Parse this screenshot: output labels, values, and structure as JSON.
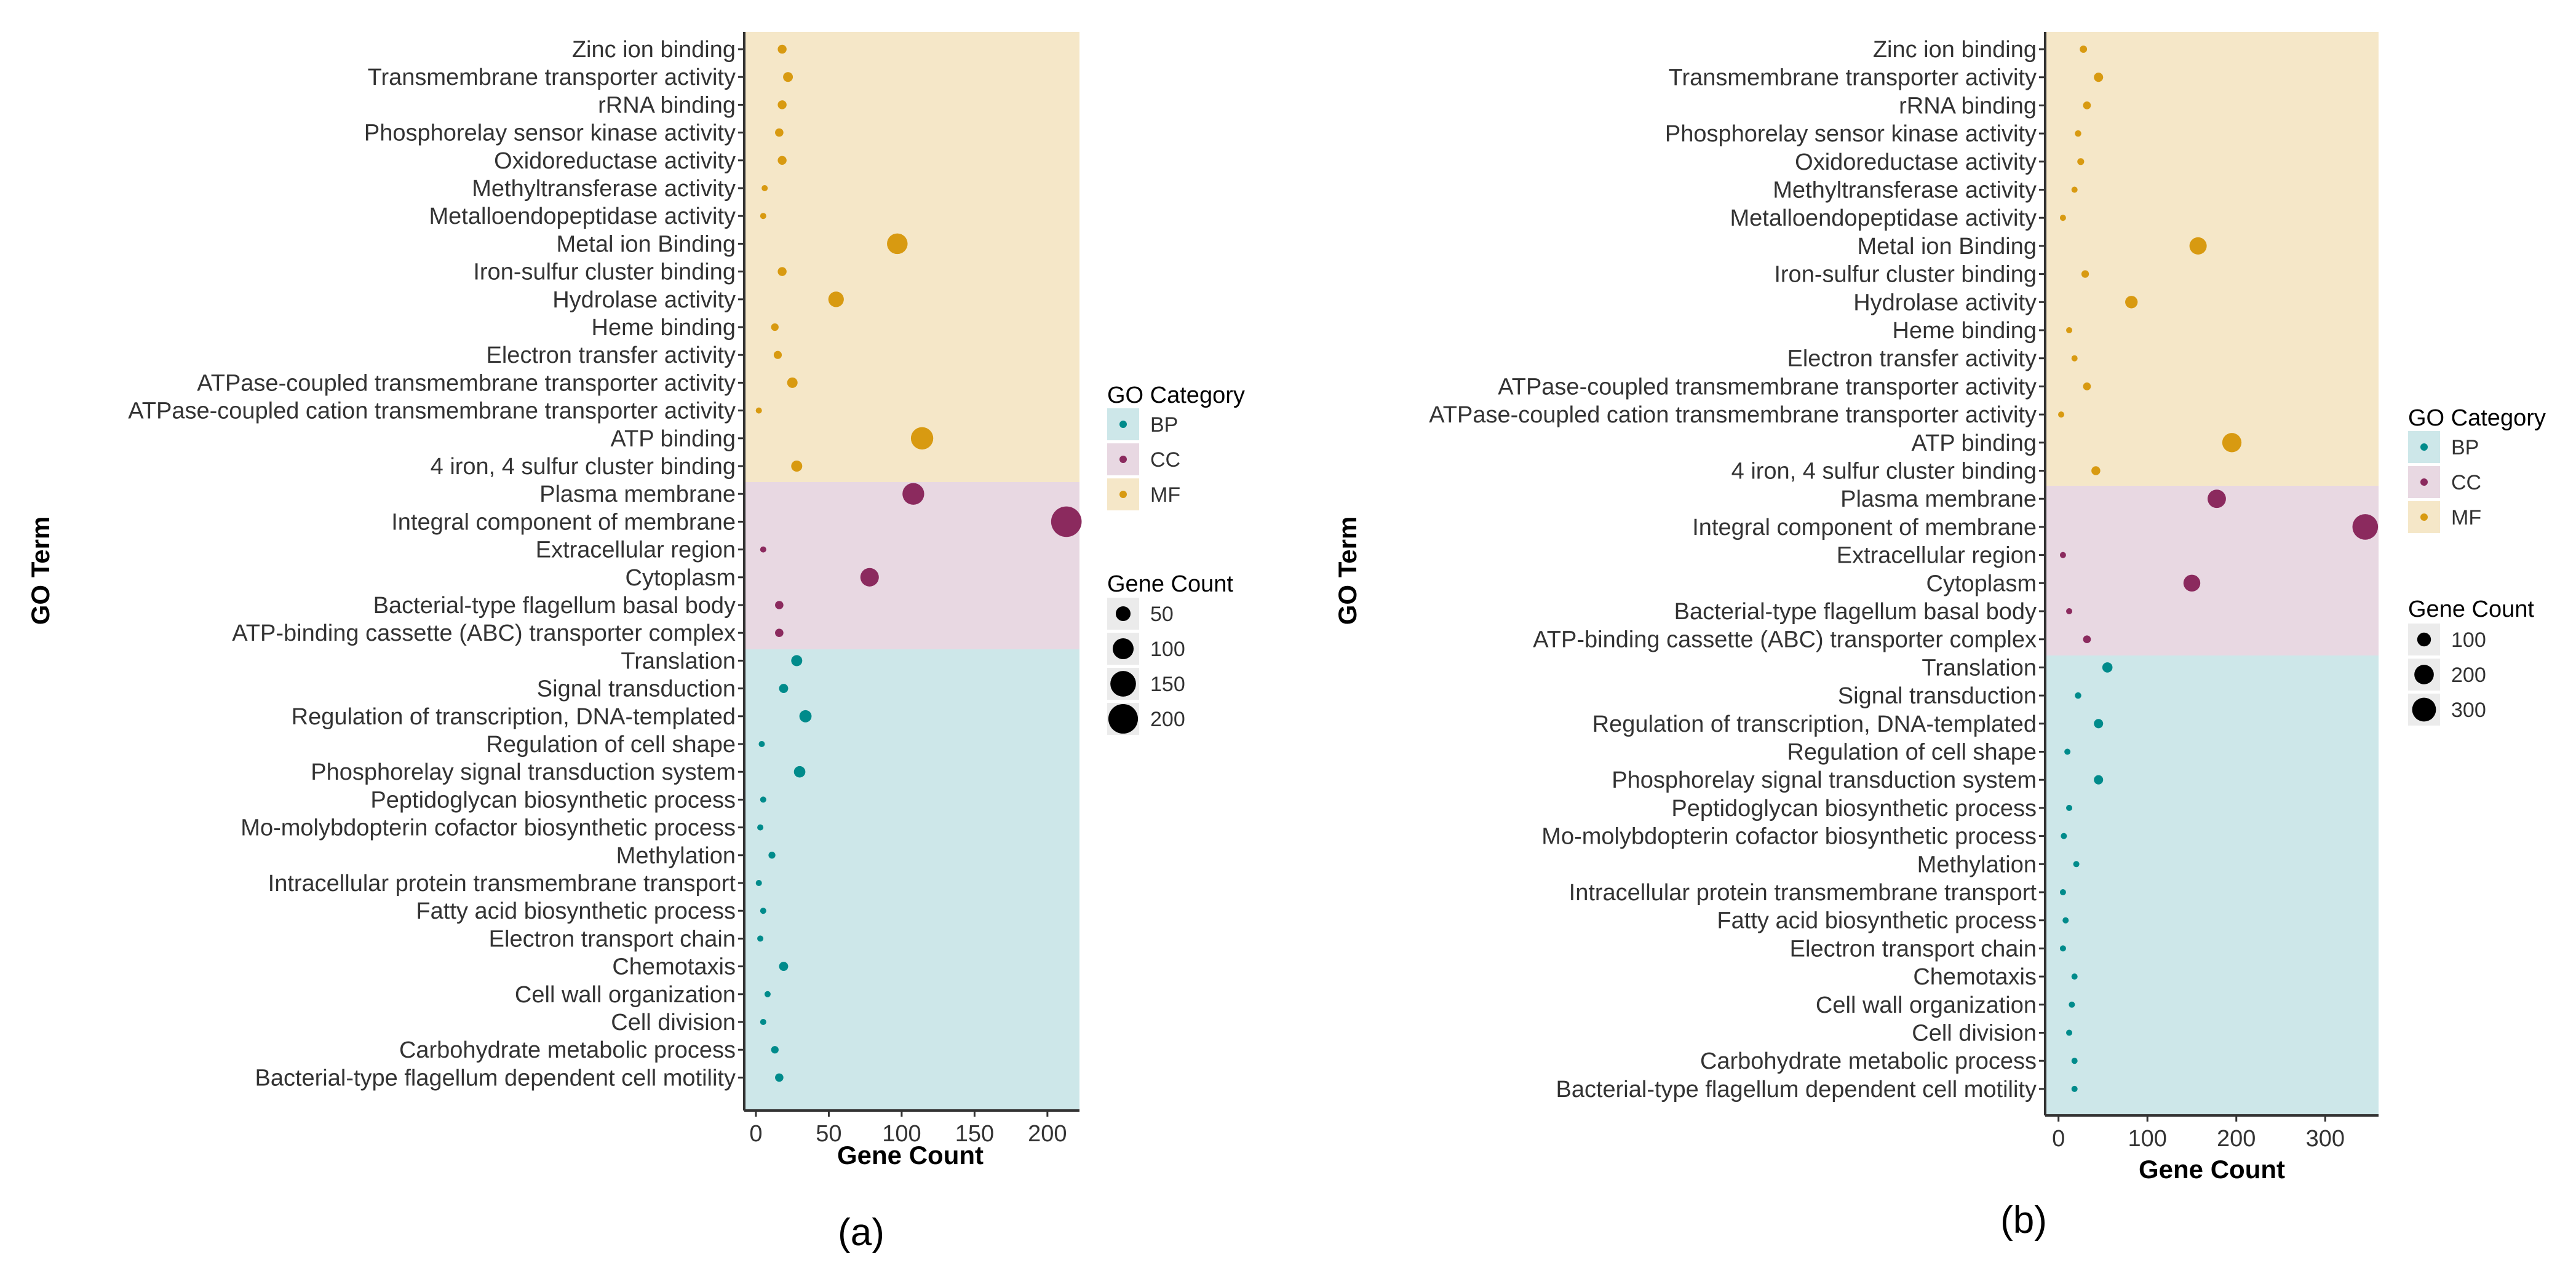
{
  "colors": {
    "BP": "#008b8b",
    "CC": "#8b2a5e",
    "MF": "#d89a11",
    "BP_band": "#cde7e9",
    "CC_band": "#e8d8e2",
    "MF_band": "#f5e7c8",
    "text": "#333333"
  },
  "chart_data": [
    {
      "type": "scatter",
      "panel_label": "(a)",
      "xlabel": "Gene Count",
      "ylabel": "GO Term",
      "xlim": [
        -8,
        222
      ],
      "xticks": [
        "0",
        "50",
        "100",
        "150",
        "200"
      ],
      "legend_category": {
        "title": "GO Category",
        "items": [
          "BP",
          "CC",
          "MF"
        ]
      },
      "legend_size": {
        "title": "Gene Count",
        "items": [
          "50",
          "100",
          "150",
          "200"
        ]
      },
      "terms": [
        {
          "term": "Zinc ion binding",
          "category": "MF",
          "value": 18
        },
        {
          "term": "Transmembrane transporter activity",
          "category": "MF",
          "value": 22
        },
        {
          "term": "rRNA binding",
          "category": "MF",
          "value": 18
        },
        {
          "term": "Phosphorelay sensor kinase activity",
          "category": "MF",
          "value": 16
        },
        {
          "term": "Oxidoreductase activity",
          "category": "MF",
          "value": 18
        },
        {
          "term": "Methyltransferase activity",
          "category": "MF",
          "value": 6
        },
        {
          "term": "Metalloendopeptidase activity",
          "category": "MF",
          "value": 5
        },
        {
          "term": "Metal ion Binding",
          "category": "MF",
          "value": 97
        },
        {
          "term": "Iron-sulfur cluster binding",
          "category": "MF",
          "value": 18
        },
        {
          "term": "Hydrolase activity",
          "category": "MF",
          "value": 55
        },
        {
          "term": "Heme binding",
          "category": "MF",
          "value": 13
        },
        {
          "term": "Electron transfer activity",
          "category": "MF",
          "value": 15
        },
        {
          "term": "ATPase-coupled transmembrane transporter activity",
          "category": "MF",
          "value": 25
        },
        {
          "term": "ATPase-coupled cation transmembrane transporter activity",
          "category": "MF",
          "value": 2
        },
        {
          "term": "ATP binding",
          "category": "MF",
          "value": 114
        },
        {
          "term": "4 iron, 4 sulfur cluster binding",
          "category": "MF",
          "value": 28
        },
        {
          "term": "Plasma membrane",
          "category": "CC",
          "value": 108
        },
        {
          "term": "Integral component of membrane",
          "category": "CC",
          "value": 213
        },
        {
          "term": "Extracellular region",
          "category": "CC",
          "value": 5
        },
        {
          "term": "Cytoplasm",
          "category": "CC",
          "value": 78
        },
        {
          "term": "Bacterial-type flagellum basal body",
          "category": "CC",
          "value": 16
        },
        {
          "term": "ATP-binding cassette (ABC) transporter complex",
          "category": "CC",
          "value": 16
        },
        {
          "term": "Translation",
          "category": "BP",
          "value": 28
        },
        {
          "term": "Signal transduction",
          "category": "BP",
          "value": 19
        },
        {
          "term": "Regulation of transcription, DNA-templated",
          "category": "BP",
          "value": 34
        },
        {
          "term": "Regulation of cell shape",
          "category": "BP",
          "value": 4
        },
        {
          "term": "Phosphorelay signal transduction system",
          "category": "BP",
          "value": 30
        },
        {
          "term": "Peptidoglycan biosynthetic process",
          "category": "BP",
          "value": 5
        },
        {
          "term": "Mo-molybdopterin cofactor biosynthetic process",
          "category": "BP",
          "value": 3
        },
        {
          "term": "Methylation",
          "category": "BP",
          "value": 11
        },
        {
          "term": "Intracellular protein transmembrane transport",
          "category": "BP",
          "value": 2
        },
        {
          "term": "Fatty acid biosynthetic process",
          "category": "BP",
          "value": 5
        },
        {
          "term": "Electron transport chain",
          "category": "BP",
          "value": 3
        },
        {
          "term": "Chemotaxis",
          "category": "BP",
          "value": 19
        },
        {
          "term": "Cell wall organization",
          "category": "BP",
          "value": 8
        },
        {
          "term": "Cell division",
          "category": "BP",
          "value": 5
        },
        {
          "term": "Carbohydrate metabolic process",
          "category": "BP",
          "value": 13
        },
        {
          "term": "Bacterial-type flagellum dependent cell motility",
          "category": "BP",
          "value": 16
        }
      ]
    },
    {
      "type": "scatter",
      "panel_label": "(b)",
      "xlabel": "Gene Count",
      "ylabel": "GO Term",
      "xlim": [
        -15,
        360
      ],
      "xticks": [
        "0",
        "100",
        "200",
        "300"
      ],
      "legend_category": {
        "title": "GO Category",
        "items": [
          "BP",
          "CC",
          "MF"
        ]
      },
      "legend_size": {
        "title": "Gene Count",
        "items": [
          "100",
          "200",
          "300"
        ]
      },
      "terms": [
        {
          "term": "Zinc ion binding",
          "category": "MF",
          "value": 28
        },
        {
          "term": "Transmembrane transporter activity",
          "category": "MF",
          "value": 45
        },
        {
          "term": "rRNA binding",
          "category": "MF",
          "value": 32
        },
        {
          "term": "Phosphorelay sensor kinase activity",
          "category": "MF",
          "value": 22
        },
        {
          "term": "Oxidoreductase activity",
          "category": "MF",
          "value": 25
        },
        {
          "term": "Methyltransferase activity",
          "category": "MF",
          "value": 18
        },
        {
          "term": "Metalloendopeptidase activity",
          "category": "MF",
          "value": 5
        },
        {
          "term": "Metal ion Binding",
          "category": "MF",
          "value": 157
        },
        {
          "term": "Iron-sulfur cluster binding",
          "category": "MF",
          "value": 30
        },
        {
          "term": "Hydrolase activity",
          "category": "MF",
          "value": 82
        },
        {
          "term": "Heme binding",
          "category": "MF",
          "value": 12
        },
        {
          "term": "Electron transfer activity",
          "category": "MF",
          "value": 18
        },
        {
          "term": "ATPase-coupled transmembrane transporter activity",
          "category": "MF",
          "value": 32
        },
        {
          "term": "ATPase-coupled cation transmembrane transporter activity",
          "category": "MF",
          "value": 3
        },
        {
          "term": "ATP binding",
          "category": "MF",
          "value": 195
        },
        {
          "term": "4 iron, 4 sulfur cluster binding",
          "category": "MF",
          "value": 42
        },
        {
          "term": "Plasma membrane",
          "category": "CC",
          "value": 178
        },
        {
          "term": "Integral component of membrane",
          "category": "CC",
          "value": 345
        },
        {
          "term": "Extracellular region",
          "category": "CC",
          "value": 5
        },
        {
          "term": "Cytoplasm",
          "category": "CC",
          "value": 150
        },
        {
          "term": "Bacterial-type flagellum basal body",
          "category": "CC",
          "value": 12
        },
        {
          "term": "ATP-binding cassette (ABC) transporter complex",
          "category": "CC",
          "value": 32
        },
        {
          "term": "Translation",
          "category": "BP",
          "value": 55
        },
        {
          "term": "Signal transduction",
          "category": "BP",
          "value": 22
        },
        {
          "term": "Regulation of transcription, DNA-templated",
          "category": "BP",
          "value": 45
        },
        {
          "term": "Regulation of cell shape",
          "category": "BP",
          "value": 10
        },
        {
          "term": "Phosphorelay signal transduction system",
          "category": "BP",
          "value": 45
        },
        {
          "term": "Peptidoglycan biosynthetic process",
          "category": "BP",
          "value": 12
        },
        {
          "term": "Mo-molybdopterin cofactor biosynthetic process",
          "category": "BP",
          "value": 6
        },
        {
          "term": "Methylation",
          "category": "BP",
          "value": 20
        },
        {
          "term": "Intracellular protein transmembrane transport",
          "category": "BP",
          "value": 5
        },
        {
          "term": "Fatty acid biosynthetic process",
          "category": "BP",
          "value": 8
        },
        {
          "term": "Electron transport chain",
          "category": "BP",
          "value": 5
        },
        {
          "term": "Chemotaxis",
          "category": "BP",
          "value": 18
        },
        {
          "term": "Cell wall organization",
          "category": "BP",
          "value": 15
        },
        {
          "term": "Cell division",
          "category": "BP",
          "value": 12
        },
        {
          "term": "Carbohydrate metabolic process",
          "category": "BP",
          "value": 18
        },
        {
          "term": "Bacterial-type flagellum dependent cell motility",
          "category": "BP",
          "value": 18
        }
      ]
    }
  ]
}
